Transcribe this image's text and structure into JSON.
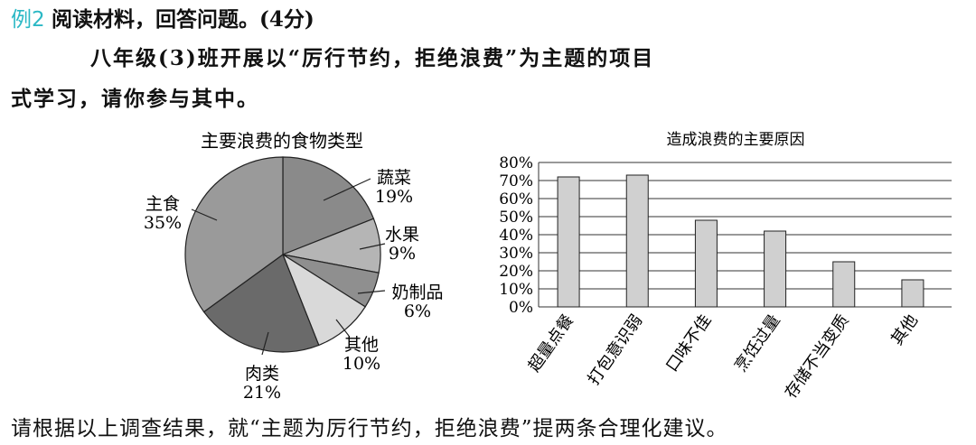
{
  "header": {
    "example_label": "例2",
    "title": "阅读材料，回答问题。(4分)"
  },
  "intro_line1": "八年级(3)班开展以“厉行节约，拒绝浪费”为主题的项目",
  "intro_line2": "式学习，请你参与其中。",
  "question": "请根据以上调查结果，就“主题为厉行节约，拒绝浪费”提两条合理化建议。",
  "chart_data": [
    {
      "type": "pie",
      "title": "主要浪费的食物类型",
      "slices": [
        {
          "label": "蔬菜",
          "value": 19,
          "value_label": "19%",
          "color": "#8a8a8a"
        },
        {
          "label": "水果",
          "value": 9,
          "value_label": "9%",
          "color": "#b5b5b5"
        },
        {
          "label": "奶制品",
          "value": 6,
          "value_label": "6%",
          "color": "#8f8f8f"
        },
        {
          "label": "其他",
          "value": 10,
          "value_label": "10%",
          "color": "#d9d9d9"
        },
        {
          "label": "肉类",
          "value": 21,
          "value_label": "21%",
          "color": "#6a6a6a"
        },
        {
          "label": "主食",
          "value": 35,
          "value_label": "35%",
          "color": "#9a9a9a"
        }
      ]
    },
    {
      "type": "bar",
      "title": "造成浪费的主要原因",
      "categories": [
        "超量点餐",
        "打包意识弱",
        "口味不佳",
        "烹饪过量",
        "存储不当变质",
        "其他"
      ],
      "values": [
        72,
        73,
        48,
        42,
        25,
        15
      ],
      "ylim": [
        0,
        80
      ],
      "yticks": [
        "0%",
        "10%",
        "20%",
        "30%",
        "40%",
        "50%",
        "60%",
        "70%",
        "80%"
      ],
      "bar_color": "#d0d0d0",
      "grid": true
    }
  ]
}
